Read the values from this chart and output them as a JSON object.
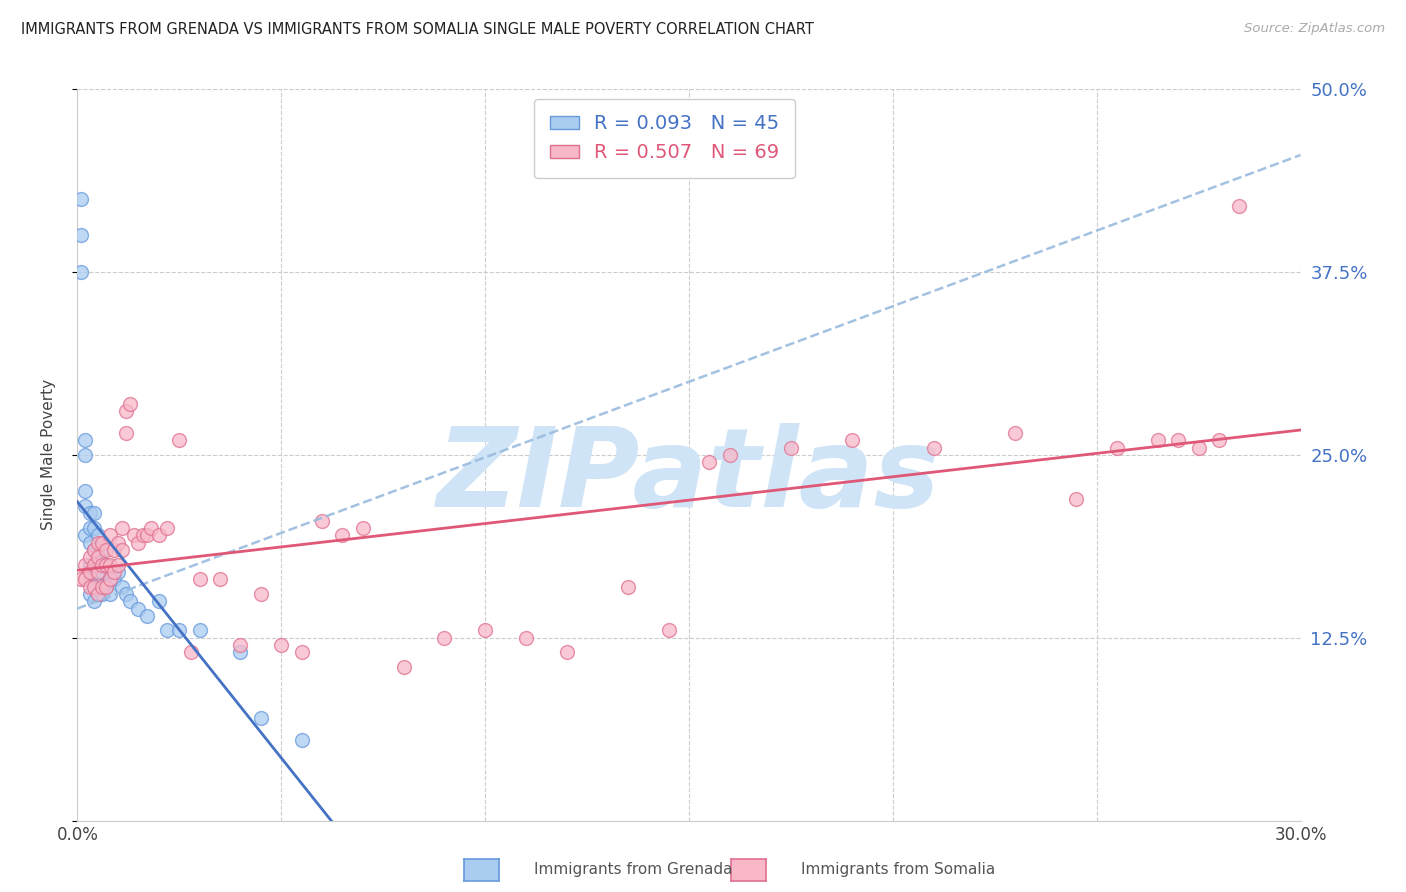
{
  "title": "IMMIGRANTS FROM GRENADA VS IMMIGRANTS FROM SOMALIA SINGLE MALE POVERTY CORRELATION CHART",
  "source": "Source: ZipAtlas.com",
  "ylabel": "Single Male Poverty",
  "x_min": 0.0,
  "x_max": 0.3,
  "y_min": 0.0,
  "y_max": 0.5,
  "x_ticks": [
    0.0,
    0.05,
    0.1,
    0.15,
    0.2,
    0.25,
    0.3
  ],
  "x_tick_labels": [
    "0.0%",
    "",
    "",
    "",
    "",
    "",
    "30.0%"
  ],
  "y_ticks_right": [
    0.0,
    0.125,
    0.25,
    0.375,
    0.5
  ],
  "y_tick_labels_right": [
    "",
    "12.5%",
    "25.0%",
    "37.5%",
    "50.0%"
  ],
  "grenada_R": 0.093,
  "grenada_N": 45,
  "somalia_R": 0.507,
  "somalia_N": 69,
  "grenada_color": "#aaccf0",
  "grenada_edge_color": "#6699dd",
  "grenada_line_color": "#4472c4",
  "somalia_color": "#f8b8c8",
  "somalia_edge_color": "#e07090",
  "somalia_line_color": "#e05878",
  "dashed_line_color": "#99bbdd",
  "watermark": "ZIPatlas",
  "watermark_color": "#d0e4f7",
  "background_color": "#ffffff",
  "grid_color": "#cccccc",
  "grenada_x": [
    0.001,
    0.001,
    0.001,
    0.002,
    0.002,
    0.002,
    0.002,
    0.002,
    0.003,
    0.003,
    0.003,
    0.003,
    0.003,
    0.003,
    0.004,
    0.004,
    0.004,
    0.004,
    0.004,
    0.004,
    0.005,
    0.005,
    0.005,
    0.005,
    0.006,
    0.006,
    0.006,
    0.007,
    0.007,
    0.008,
    0.008,
    0.009,
    0.01,
    0.011,
    0.012,
    0.013,
    0.015,
    0.017,
    0.02,
    0.022,
    0.025,
    0.03,
    0.04,
    0.045,
    0.055
  ],
  "grenada_y": [
    0.425,
    0.4,
    0.375,
    0.26,
    0.25,
    0.225,
    0.215,
    0.195,
    0.21,
    0.2,
    0.19,
    0.175,
    0.165,
    0.155,
    0.21,
    0.2,
    0.185,
    0.17,
    0.16,
    0.15,
    0.195,
    0.18,
    0.165,
    0.155,
    0.185,
    0.17,
    0.155,
    0.175,
    0.16,
    0.17,
    0.155,
    0.165,
    0.17,
    0.16,
    0.155,
    0.15,
    0.145,
    0.14,
    0.15,
    0.13,
    0.13,
    0.13,
    0.115,
    0.07,
    0.055
  ],
  "somalia_x": [
    0.001,
    0.002,
    0.002,
    0.003,
    0.003,
    0.003,
    0.004,
    0.004,
    0.004,
    0.005,
    0.005,
    0.005,
    0.005,
    0.006,
    0.006,
    0.006,
    0.007,
    0.007,
    0.007,
    0.008,
    0.008,
    0.008,
    0.009,
    0.009,
    0.01,
    0.01,
    0.011,
    0.011,
    0.012,
    0.012,
    0.013,
    0.014,
    0.015,
    0.016,
    0.017,
    0.018,
    0.02,
    0.022,
    0.025,
    0.028,
    0.03,
    0.035,
    0.04,
    0.045,
    0.05,
    0.055,
    0.06,
    0.065,
    0.07,
    0.08,
    0.09,
    0.1,
    0.11,
    0.12,
    0.135,
    0.145,
    0.155,
    0.16,
    0.175,
    0.19,
    0.21,
    0.23,
    0.245,
    0.255,
    0.265,
    0.27,
    0.275,
    0.28,
    0.285
  ],
  "somalia_y": [
    0.165,
    0.175,
    0.165,
    0.18,
    0.17,
    0.16,
    0.185,
    0.175,
    0.16,
    0.19,
    0.18,
    0.17,
    0.155,
    0.19,
    0.175,
    0.16,
    0.185,
    0.175,
    0.16,
    0.195,
    0.175,
    0.165,
    0.185,
    0.17,
    0.19,
    0.175,
    0.2,
    0.185,
    0.28,
    0.265,
    0.285,
    0.195,
    0.19,
    0.195,
    0.195,
    0.2,
    0.195,
    0.2,
    0.26,
    0.115,
    0.165,
    0.165,
    0.12,
    0.155,
    0.12,
    0.115,
    0.205,
    0.195,
    0.2,
    0.105,
    0.125,
    0.13,
    0.125,
    0.115,
    0.16,
    0.13,
    0.245,
    0.25,
    0.255,
    0.26,
    0.255,
    0.265,
    0.22,
    0.255,
    0.26,
    0.26,
    0.255,
    0.26,
    0.42
  ]
}
